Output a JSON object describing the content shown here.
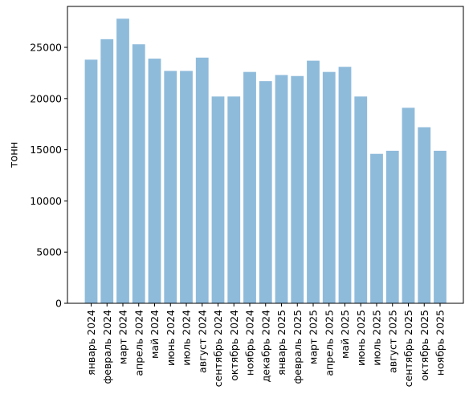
{
  "chart_data": {
    "type": "bar",
    "title": "",
    "xlabel": "",
    "ylabel": "тонн",
    "ylim": [
      0,
      29000
    ],
    "yticks": [
      0,
      5000,
      10000,
      15000,
      20000,
      25000
    ],
    "grid": false,
    "legend": "none",
    "bar_color": "#8fbbdb",
    "categories": [
      "январь 2024",
      "февраль 2024",
      "март 2024",
      "апрель 2024",
      "май 2024",
      "июнь 2024",
      "июль 2024",
      "август 2024",
      "сентябрь 2024",
      "октябрь 2024",
      "ноябрь 2024",
      "декабрь 2024",
      "январь 2025",
      "февраль 2025",
      "март 2025",
      "апрель 2025",
      "май 2025",
      "июнь 2025",
      "июль 2025",
      "август 2025",
      "сентябрь 2025",
      "октябрь 2025",
      "ноябрь 2025"
    ],
    "values": [
      23800,
      25800,
      27800,
      25300,
      23900,
      22700,
      22700,
      24000,
      20200,
      20200,
      22600,
      21700,
      22300,
      22200,
      23700,
      22600,
      23100,
      20200,
      14600,
      14900,
      19100,
      17200,
      14900
    ]
  }
}
